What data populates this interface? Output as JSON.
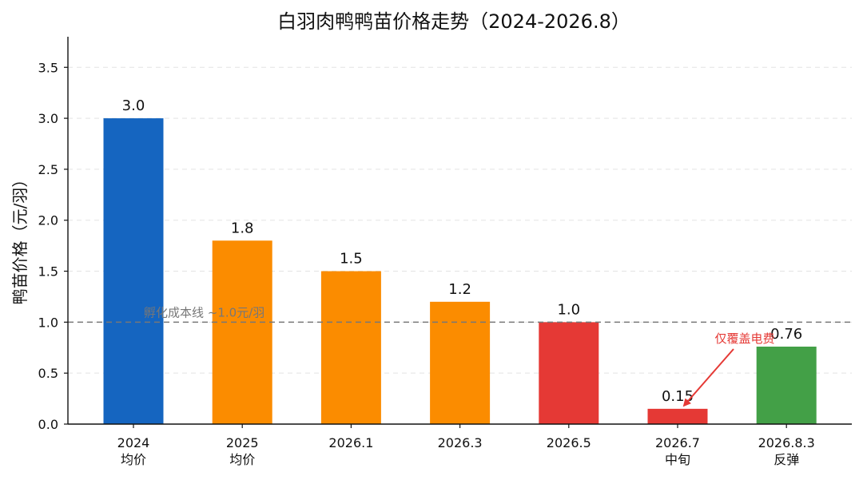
{
  "chart_data": {
    "type": "bar",
    "title": "白羽肉鸭鸭苗价格走势（2024-2026.8）",
    "xlabel": "",
    "ylabel": "鸭苗价格（元/羽）",
    "ylim": [
      0,
      3.8
    ],
    "yticks": [
      0.0,
      0.5,
      1.0,
      1.5,
      2.0,
      2.5,
      3.0,
      3.5
    ],
    "ytick_labels": [
      "0.0",
      "0.5",
      "1.0",
      "1.5",
      "2.0",
      "2.5",
      "3.0",
      "3.5"
    ],
    "grid": "horizontal dashed",
    "categories": [
      [
        "2024",
        "均价"
      ],
      [
        "2025",
        "均价"
      ],
      [
        "2026.1"
      ],
      [
        "2026.3"
      ],
      [
        "2026.5"
      ],
      [
        "2026.7",
        "中旬"
      ],
      [
        "2026.8.3",
        "反弹"
      ]
    ],
    "values": [
      3.0,
      1.8,
      1.5,
      1.2,
      1.0,
      0.15,
      0.76
    ],
    "value_labels": [
      "3.0",
      "1.8",
      "1.5",
      "1.2",
      "1.0",
      "0.15",
      "0.76"
    ],
    "bar_colors": [
      "#1565c0",
      "#fb8c00",
      "#fb8c00",
      "#fb8c00",
      "#e53935",
      "#e53935",
      "#43a047"
    ],
    "reference_line": {
      "value": 1.0,
      "label": "孵化成本线 ~1.0元/羽",
      "color": "#777777"
    },
    "annotation": {
      "text": "仅覆盖电费",
      "color": "#e53935",
      "points_to_category_index": 5,
      "text_position": "above-right of the 2026.7 bar, near the 2026.8.3 bar"
    }
  }
}
